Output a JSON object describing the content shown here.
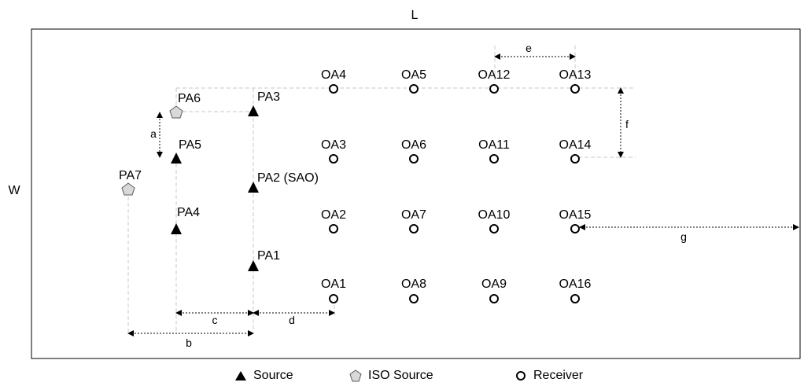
{
  "room": {
    "length_label": "L",
    "width_label": "W"
  },
  "dimensions": {
    "a": "a",
    "b": "b",
    "c": "c",
    "d": "d",
    "e": "e",
    "f": "f",
    "g": "g"
  },
  "sources": [
    {
      "label": "PA1",
      "type": "source"
    },
    {
      "label": "PA2 (SAO)",
      "type": "source"
    },
    {
      "label": "PA3",
      "type": "source"
    },
    {
      "label": "PA4",
      "type": "source"
    },
    {
      "label": "PA5",
      "type": "source"
    },
    {
      "label": "PA6",
      "type": "iso_source"
    },
    {
      "label": "PA7",
      "type": "iso_source"
    }
  ],
  "receivers": [
    "OA1",
    "OA2",
    "OA3",
    "OA4",
    "OA5",
    "OA6",
    "OA7",
    "OA8",
    "OA9",
    "OA10",
    "OA11",
    "OA12",
    "OA13",
    "OA14",
    "OA15",
    "OA16"
  ],
  "legend": {
    "source": "Source",
    "iso_source": "ISO Source",
    "receiver": "Receiver"
  }
}
